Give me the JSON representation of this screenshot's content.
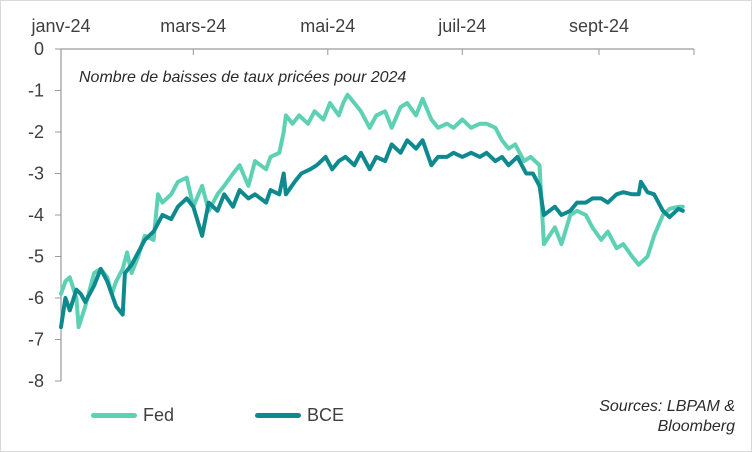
{
  "chart_data": {
    "type": "line",
    "title": "Nombre de baisses de taux pricées pour 2024",
    "xlabel": "",
    "ylabel": "",
    "ylim": [
      -8,
      0
    ],
    "yticks": [
      0,
      -1,
      -2,
      -3,
      -4,
      -5,
      -6,
      -7,
      -8
    ],
    "ytick_labels": [
      "0",
      "-1",
      "-2",
      "-3",
      "-4",
      "-5",
      "-6",
      "-7",
      "-8"
    ],
    "xticks": [
      "2024-01-01",
      "2024-03-01",
      "2024-05-01",
      "2024-07-01",
      "2024-09-01"
    ],
    "xtick_labels": [
      "janv-24",
      "mars-24",
      "mai-24",
      "juil-24",
      "sept-24"
    ],
    "x_axis_position": "top",
    "grid": false,
    "legend_position": "bottom-left",
    "source_lines": [
      "Sources: LBPAM &",
      "Bloomberg"
    ],
    "series": [
      {
        "name": "Fed",
        "color": "#5ED0B3",
        "points": [
          [
            "2024-01-01",
            -5.9
          ],
          [
            "2024-01-03",
            -5.6
          ],
          [
            "2024-01-05",
            -5.5
          ],
          [
            "2024-01-08",
            -6.0
          ],
          [
            "2024-01-09",
            -6.7
          ],
          [
            "2024-01-12",
            -6.2
          ],
          [
            "2024-01-16",
            -5.4
          ],
          [
            "2024-01-19",
            -5.3
          ],
          [
            "2024-01-22",
            -5.5
          ],
          [
            "2024-01-24",
            -5.9
          ],
          [
            "2024-01-26",
            -5.6
          ],
          [
            "2024-01-29",
            -5.3
          ],
          [
            "2024-01-31",
            -4.9
          ],
          [
            "2024-02-02",
            -5.4
          ],
          [
            "2024-02-05",
            -5.0
          ],
          [
            "2024-02-08",
            -4.5
          ],
          [
            "2024-02-12",
            -4.6
          ],
          [
            "2024-02-14",
            -3.5
          ],
          [
            "2024-02-16",
            -3.7
          ],
          [
            "2024-02-20",
            -3.5
          ],
          [
            "2024-02-23",
            -3.2
          ],
          [
            "2024-02-27",
            -3.1
          ],
          [
            "2024-03-01",
            -3.8
          ],
          [
            "2024-03-05",
            -3.3
          ],
          [
            "2024-03-08",
            -3.9
          ],
          [
            "2024-03-12",
            -3.5
          ],
          [
            "2024-03-15",
            -3.3
          ],
          [
            "2024-03-19",
            -3.0
          ],
          [
            "2024-03-22",
            -2.8
          ],
          [
            "2024-03-26",
            -3.3
          ],
          [
            "2024-03-29",
            -2.7
          ],
          [
            "2024-04-03",
            -2.9
          ],
          [
            "2024-04-05",
            -2.6
          ],
          [
            "2024-04-09",
            -2.5
          ],
          [
            "2024-04-11",
            -2.0
          ],
          [
            "2024-04-12",
            -1.6
          ],
          [
            "2024-04-15",
            -1.8
          ],
          [
            "2024-04-18",
            -1.6
          ],
          [
            "2024-04-22",
            -1.8
          ],
          [
            "2024-04-25",
            -1.5
          ],
          [
            "2024-04-29",
            -1.7
          ],
          [
            "2024-05-02",
            -1.3
          ],
          [
            "2024-05-06",
            -1.6
          ],
          [
            "2024-05-08",
            -1.3
          ],
          [
            "2024-05-10",
            -1.1
          ],
          [
            "2024-05-13",
            -1.3
          ],
          [
            "2024-05-16",
            -1.5
          ],
          [
            "2024-05-20",
            -1.9
          ],
          [
            "2024-05-23",
            -1.6
          ],
          [
            "2024-05-27",
            -1.5
          ],
          [
            "2024-05-30",
            -1.9
          ],
          [
            "2024-06-03",
            -1.4
          ],
          [
            "2024-06-06",
            -1.3
          ],
          [
            "2024-06-10",
            -1.6
          ],
          [
            "2024-06-13",
            -1.2
          ],
          [
            "2024-06-17",
            -1.7
          ],
          [
            "2024-06-20",
            -1.9
          ],
          [
            "2024-06-24",
            -1.8
          ],
          [
            "2024-06-27",
            -1.9
          ],
          [
            "2024-07-01",
            -1.7
          ],
          [
            "2024-07-05",
            -1.9
          ],
          [
            "2024-07-09",
            -1.8
          ],
          [
            "2024-07-12",
            -1.8
          ],
          [
            "2024-07-16",
            -1.9
          ],
          [
            "2024-07-19",
            -2.2
          ],
          [
            "2024-07-22",
            -2.4
          ],
          [
            "2024-07-25",
            -2.3
          ],
          [
            "2024-07-29",
            -2.7
          ],
          [
            "2024-08-01",
            -2.6
          ],
          [
            "2024-08-05",
            -2.8
          ],
          [
            "2024-08-07",
            -4.7
          ],
          [
            "2024-08-12",
            -4.3
          ],
          [
            "2024-08-15",
            -4.7
          ],
          [
            "2024-08-19",
            -4.0
          ],
          [
            "2024-08-22",
            -3.9
          ],
          [
            "2024-08-26",
            -4.0
          ],
          [
            "2024-08-29",
            -4.3
          ],
          [
            "2024-09-02",
            -4.6
          ],
          [
            "2024-09-05",
            -4.4
          ],
          [
            "2024-09-09",
            -4.8
          ],
          [
            "2024-09-12",
            -4.7
          ],
          [
            "2024-09-16",
            -5.0
          ],
          [
            "2024-09-19",
            -5.2
          ],
          [
            "2024-09-23",
            -5.0
          ],
          [
            "2024-09-26",
            -4.5
          ],
          [
            "2024-09-30",
            -4.0
          ],
          [
            "2024-10-03",
            -3.85
          ],
          [
            "2024-10-07",
            -3.8
          ],
          [
            "2024-10-09",
            -3.8
          ]
        ]
      },
      {
        "name": "BCE",
        "color": "#0E8A8F",
        "points": [
          [
            "2024-01-01",
            -6.7
          ],
          [
            "2024-01-03",
            -6.0
          ],
          [
            "2024-01-05",
            -6.3
          ],
          [
            "2024-01-08",
            -5.8
          ],
          [
            "2024-01-10",
            -5.9
          ],
          [
            "2024-01-12",
            -6.1
          ],
          [
            "2024-01-16",
            -5.7
          ],
          [
            "2024-01-19",
            -5.3
          ],
          [
            "2024-01-22",
            -5.6
          ],
          [
            "2024-01-24",
            -5.9
          ],
          [
            "2024-01-26",
            -6.2
          ],
          [
            "2024-01-29",
            -6.4
          ],
          [
            "2024-01-30",
            -5.4
          ],
          [
            "2024-02-02",
            -5.2
          ],
          [
            "2024-02-05",
            -4.9
          ],
          [
            "2024-02-08",
            -4.6
          ],
          [
            "2024-02-12",
            -4.4
          ],
          [
            "2024-02-14",
            -4.2
          ],
          [
            "2024-02-16",
            -4.0
          ],
          [
            "2024-02-20",
            -4.1
          ],
          [
            "2024-02-23",
            -3.8
          ],
          [
            "2024-02-27",
            -3.6
          ],
          [
            "2024-03-01",
            -3.8
          ],
          [
            "2024-03-05",
            -4.5
          ],
          [
            "2024-03-08",
            -3.7
          ],
          [
            "2024-03-12",
            -3.9
          ],
          [
            "2024-03-15",
            -3.5
          ],
          [
            "2024-03-19",
            -3.8
          ],
          [
            "2024-03-22",
            -3.4
          ],
          [
            "2024-03-26",
            -3.6
          ],
          [
            "2024-03-29",
            -3.5
          ],
          [
            "2024-04-03",
            -3.7
          ],
          [
            "2024-04-05",
            -3.4
          ],
          [
            "2024-04-09",
            -3.5
          ],
          [
            "2024-04-11",
            -3.0
          ],
          [
            "2024-04-12",
            -3.5
          ],
          [
            "2024-04-16",
            -3.2
          ],
          [
            "2024-04-19",
            -3.0
          ],
          [
            "2024-04-23",
            -2.9
          ],
          [
            "2024-04-26",
            -2.8
          ],
          [
            "2024-04-30",
            -2.6
          ],
          [
            "2024-05-03",
            -2.9
          ],
          [
            "2024-05-06",
            -2.7
          ],
          [
            "2024-05-09",
            -2.6
          ],
          [
            "2024-05-13",
            -2.8
          ],
          [
            "2024-05-16",
            -2.5
          ],
          [
            "2024-05-20",
            -2.9
          ],
          [
            "2024-05-23",
            -2.6
          ],
          [
            "2024-05-27",
            -2.7
          ],
          [
            "2024-05-30",
            -2.3
          ],
          [
            "2024-06-03",
            -2.5
          ],
          [
            "2024-06-06",
            -2.2
          ],
          [
            "2024-06-10",
            -2.4
          ],
          [
            "2024-06-13",
            -2.2
          ],
          [
            "2024-06-17",
            -2.8
          ],
          [
            "2024-06-20",
            -2.6
          ],
          [
            "2024-06-24",
            -2.6
          ],
          [
            "2024-06-27",
            -2.5
          ],
          [
            "2024-07-01",
            -2.6
          ],
          [
            "2024-07-05",
            -2.5
          ],
          [
            "2024-07-09",
            -2.6
          ],
          [
            "2024-07-12",
            -2.5
          ],
          [
            "2024-07-16",
            -2.7
          ],
          [
            "2024-07-19",
            -2.6
          ],
          [
            "2024-07-22",
            -2.8
          ],
          [
            "2024-07-26",
            -2.6
          ],
          [
            "2024-07-30",
            -3.0
          ],
          [
            "2024-08-02",
            -3.0
          ],
          [
            "2024-08-05",
            -3.3
          ],
          [
            "2024-08-07",
            -4.0
          ],
          [
            "2024-08-12",
            -3.8
          ],
          [
            "2024-08-15",
            -4.0
          ],
          [
            "2024-08-19",
            -3.9
          ],
          [
            "2024-08-22",
            -3.7
          ],
          [
            "2024-08-26",
            -3.7
          ],
          [
            "2024-08-29",
            -3.6
          ],
          [
            "2024-09-02",
            -3.6
          ],
          [
            "2024-09-05",
            -3.7
          ],
          [
            "2024-09-09",
            -3.5
          ],
          [
            "2024-09-12",
            -3.45
          ],
          [
            "2024-09-16",
            -3.5
          ],
          [
            "2024-09-19",
            -3.5
          ],
          [
            "2024-09-20",
            -3.2
          ],
          [
            "2024-09-23",
            -3.45
          ],
          [
            "2024-09-26",
            -3.5
          ],
          [
            "2024-09-30",
            -3.9
          ],
          [
            "2024-10-03",
            -4.05
          ],
          [
            "2024-10-07",
            -3.85
          ],
          [
            "2024-10-09",
            -3.9
          ]
        ]
      }
    ]
  }
}
